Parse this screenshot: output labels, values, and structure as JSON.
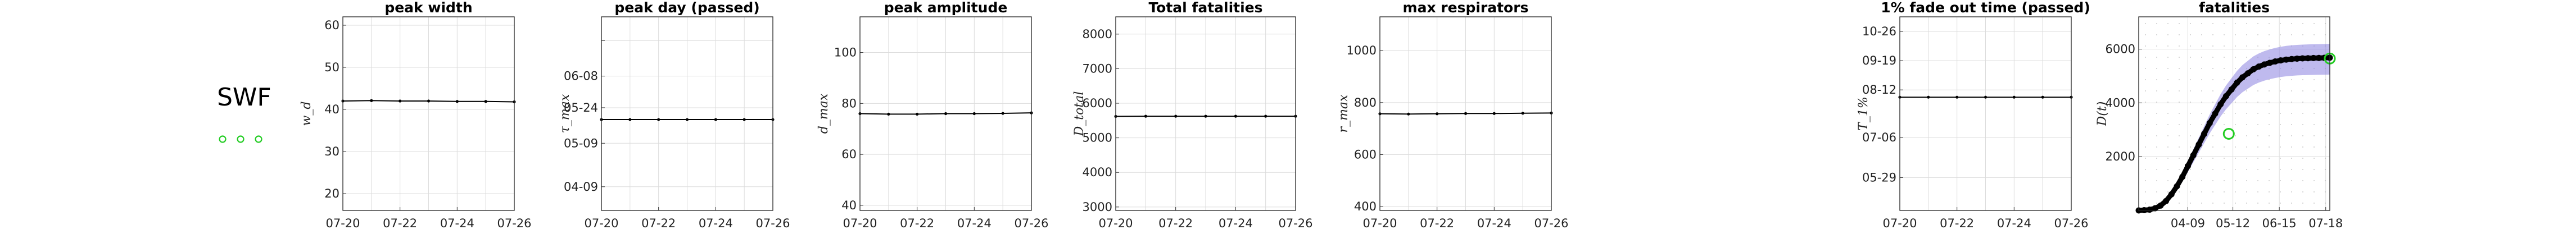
{
  "label": "SWF",
  "colors": {
    "line": "#000000",
    "grid": "#dcdcdc",
    "highlight": "#22cc22",
    "band": "#8a82e0",
    "marker_grid": "#bbbbbb"
  },
  "chart_data": [
    {
      "type": "line",
      "title": "peak width",
      "ylabel": "w_d",
      "xticks": [
        "07-20",
        "07-22",
        "07-24",
        "07-26"
      ],
      "xlim": [
        0,
        6
      ],
      "x": [
        0,
        1,
        2,
        3,
        4,
        5,
        6
      ],
      "y": [
        42,
        42.1,
        42,
        42,
        41.9,
        41.9,
        41.8
      ],
      "ylim": [
        16,
        62
      ],
      "yticks": [
        20,
        30,
        40,
        50,
        60
      ],
      "ytick_labels": [
        "20",
        "30",
        "40",
        "50",
        "60"
      ],
      "grid": true
    },
    {
      "type": "line",
      "title": "peak day (passed)",
      "ylabel": "τ_max",
      "xticks": [
        "07-20",
        "07-22",
        "07-24",
        "07-26"
      ],
      "xlim": [
        0,
        6
      ],
      "x": [
        0,
        1,
        2,
        3,
        4,
        5,
        6
      ],
      "y": [
        0,
        0,
        0,
        0,
        0,
        0,
        0
      ],
      "ylim": [
        -2.3,
        2.6
      ],
      "yticks": [
        -2,
        -1,
        0,
        1,
        2
      ],
      "ytick_labels": [
        "04-09",
        "05-09",
        "05-24",
        "06-08",
        ""
      ],
      "ytick_positions": [
        -1.7,
        -0.6,
        0.3,
        1.1,
        2.0
      ],
      "grid": true
    },
    {
      "type": "line",
      "title": "peak amplitude",
      "ylabel": "d_max",
      "xticks": [
        "07-20",
        "07-22",
        "07-24",
        "07-26"
      ],
      "xlim": [
        0,
        6
      ],
      "x": [
        0,
        1,
        2,
        3,
        4,
        5,
        6
      ],
      "y": [
        76,
        75.8,
        75.8,
        76,
        76,
        76.1,
        76.3
      ],
      "ylim": [
        38,
        114
      ],
      "yticks": [
        40,
        60,
        80,
        100
      ],
      "ytick_labels": [
        "40",
        "60",
        "80",
        "100"
      ],
      "grid": true
    },
    {
      "type": "line",
      "title": "Total fatalities",
      "ylabel": "D_total",
      "xticks": [
        "07-20",
        "07-22",
        "07-24",
        "07-26"
      ],
      "xlim": [
        0,
        6
      ],
      "x": [
        0,
        1,
        2,
        3,
        4,
        5,
        6
      ],
      "y": [
        5620,
        5625,
        5625,
        5625,
        5625,
        5625,
        5625
      ],
      "ylim": [
        2900,
        8500
      ],
      "yticks": [
        3000,
        4000,
        5000,
        6000,
        7000,
        8000
      ],
      "ytick_labels": [
        "3000",
        "4000",
        "5000",
        "6000",
        "7000",
        "8000"
      ],
      "grid": true
    },
    {
      "type": "line",
      "title": "max respirators",
      "ylabel": "r_max",
      "xticks": [
        "07-20",
        "07-22",
        "07-24",
        "07-26"
      ],
      "xlim": [
        0,
        6
      ],
      "x": [
        0,
        1,
        2,
        3,
        4,
        5,
        6
      ],
      "y": [
        757,
        756,
        757,
        758,
        758,
        759,
        760
      ],
      "ylim": [
        385,
        1130
      ],
      "yticks": [
        400,
        600,
        800,
        1000
      ],
      "ytick_labels": [
        "400",
        "600",
        "800",
        "1000"
      ],
      "grid": true
    },
    {
      "type": "line",
      "title": "1% fade out time (passed)",
      "ylabel": "T_1%",
      "xticks": [
        "07-20",
        "07-22",
        "07-24",
        "07-26"
      ],
      "xlim": [
        0,
        6
      ],
      "x": [
        0,
        1,
        2,
        3,
        4,
        5,
        6
      ],
      "y": [
        0,
        0,
        0,
        0,
        0,
        0,
        0
      ],
      "ylim": [
        -3.1,
        2.2
      ],
      "yticks": [
        -2,
        -1,
        0,
        1,
        2
      ],
      "ytick_labels": [
        "05-29",
        "07-06",
        "08-12",
        "09-19",
        "10-26"
      ],
      "ytick_positions": [
        -2.2,
        -1.1,
        0.2,
        1.0,
        1.8
      ],
      "grid": true
    },
    {
      "type": "scatter",
      "title": "fatalities",
      "ylabel": "D(t)",
      "xticks": [
        "04-09",
        "05-12",
        "06-15",
        "07-18"
      ],
      "xtick_positions": [
        36,
        69,
        103,
        137
      ],
      "xlim": [
        0,
        140
      ],
      "ylim": [
        0,
        7200
      ],
      "yticks": [
        0,
        2000,
        4000,
        6000
      ],
      "ytick_labels": [
        "",
        "2000",
        "4000",
        "6000"
      ],
      "x": [
        0,
        4,
        8,
        12,
        16,
        20,
        24,
        28,
        32,
        36,
        40,
        44,
        48,
        52,
        56,
        60,
        64,
        68,
        72,
        76,
        80,
        84,
        88,
        92,
        96,
        100,
        104,
        108,
        112,
        116,
        120,
        124,
        128,
        132,
        136,
        140
      ],
      "y": [
        0,
        10,
        30,
        80,
        180,
        350,
        600,
        900,
        1250,
        1650,
        2050,
        2450,
        2850,
        3250,
        3600,
        3950,
        4250,
        4500,
        4750,
        4950,
        5100,
        5250,
        5350,
        5430,
        5490,
        5540,
        5580,
        5610,
        5630,
        5645,
        5655,
        5662,
        5668,
        5672,
        5676,
        5680
      ],
      "highlight_points": [
        {
          "x": 66,
          "y": 2850
        },
        {
          "x": 140,
          "y": 5650
        }
      ],
      "grid": true
    }
  ]
}
